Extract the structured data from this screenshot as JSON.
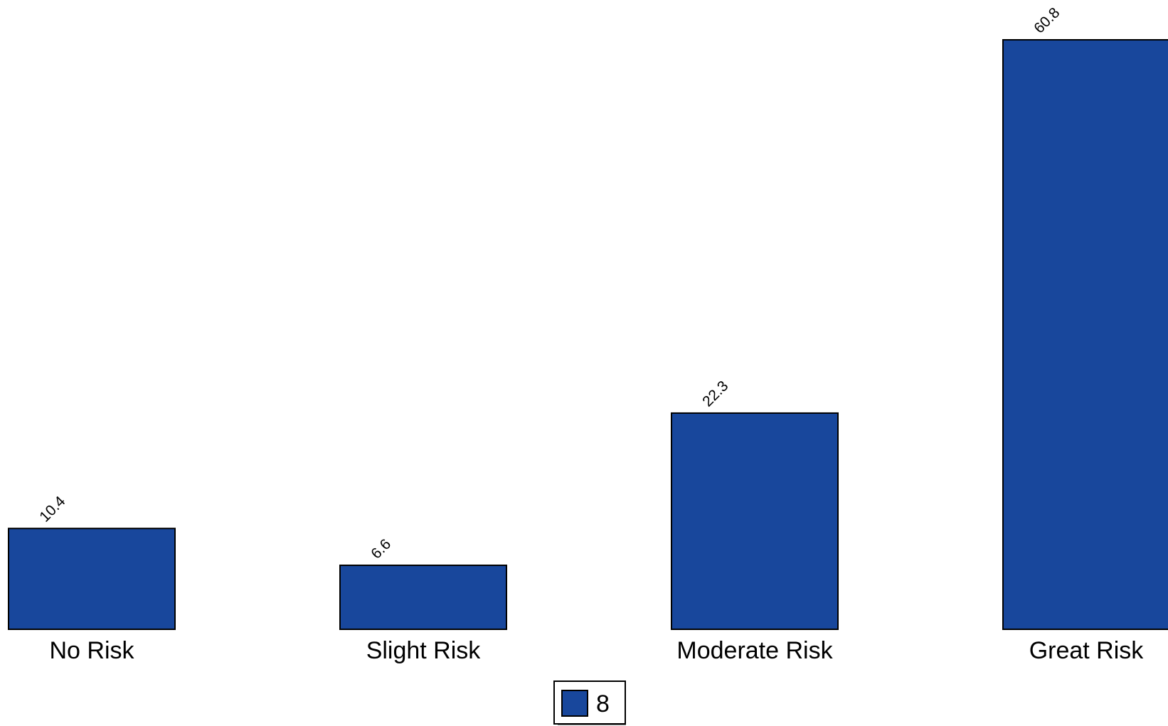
{
  "chart_data": {
    "type": "bar",
    "categories": [
      "No Risk",
      "Slight Risk",
      "Moderate Risk",
      "Great Risk"
    ],
    "series": [
      {
        "name": "8",
        "values": [
          10.4,
          6.6,
          22.3,
          60.8
        ],
        "color": "#18479c"
      }
    ],
    "value_labels": [
      "10.4",
      "6.6",
      "22.3",
      "60.8"
    ],
    "title": "",
    "xlabel": "",
    "ylabel": "",
    "ylim": [
      0,
      60.8
    ],
    "grid": false,
    "legend_position": "bottom-center"
  }
}
